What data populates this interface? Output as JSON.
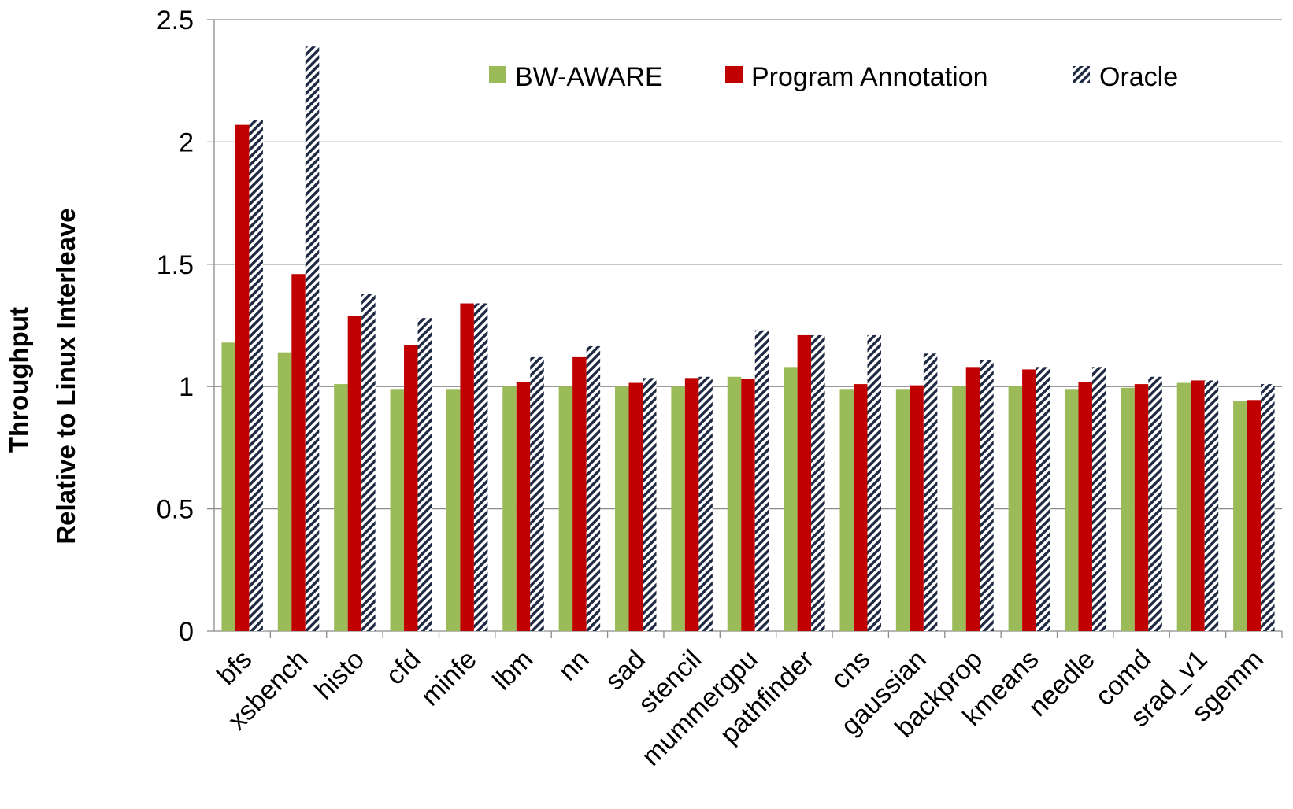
{
  "chart_data": {
    "type": "bar",
    "title": "",
    "xlabel": "",
    "ylabel_lines": [
      "Throughput",
      "Relative to Linux Interleave"
    ],
    "ylim": [
      0,
      2.5
    ],
    "yticks": [
      0,
      0.5,
      1,
      1.5,
      2,
      2.5
    ],
    "ytick_labels": [
      "0",
      "0.5",
      "1",
      "1.5",
      "2",
      "2.5"
    ],
    "grid": true,
    "legend_position": "top-right",
    "categories": [
      "bfs",
      "xsbench",
      "histo",
      "cfd",
      "minfe",
      "lbm",
      "nn",
      "sad",
      "stencil",
      "mummergpu",
      "pathfinder",
      "cns",
      "gaussian",
      "backprop",
      "kmeans",
      "needle",
      "comd",
      "srad_v1",
      "sgemm"
    ],
    "series": [
      {
        "name": "BW-AWARE",
        "color": "#9bbb59",
        "pattern": "solid",
        "values": [
          1.18,
          1.14,
          1.01,
          0.99,
          0.99,
          1.0,
          1.0,
          1.0,
          1.0,
          1.04,
          1.08,
          0.99,
          0.99,
          1.0,
          1.0,
          0.99,
          0.995,
          1.015,
          0.94
        ]
      },
      {
        "name": "Program Annotation",
        "color": "#c00000",
        "pattern": "solid",
        "values": [
          2.07,
          1.46,
          1.29,
          1.17,
          1.34,
          1.02,
          1.12,
          1.015,
          1.035,
          1.03,
          1.21,
          1.01,
          1.005,
          1.08,
          1.07,
          1.02,
          1.01,
          1.025,
          0.945
        ]
      },
      {
        "name": "Oracle",
        "color": "#1f2a44",
        "pattern": "diagonal-stripes",
        "values": [
          2.09,
          2.39,
          1.38,
          1.28,
          1.34,
          1.12,
          1.165,
          1.035,
          1.04,
          1.23,
          1.21,
          1.21,
          1.135,
          1.11,
          1.08,
          1.08,
          1.04,
          1.025,
          1.01
        ]
      }
    ]
  }
}
